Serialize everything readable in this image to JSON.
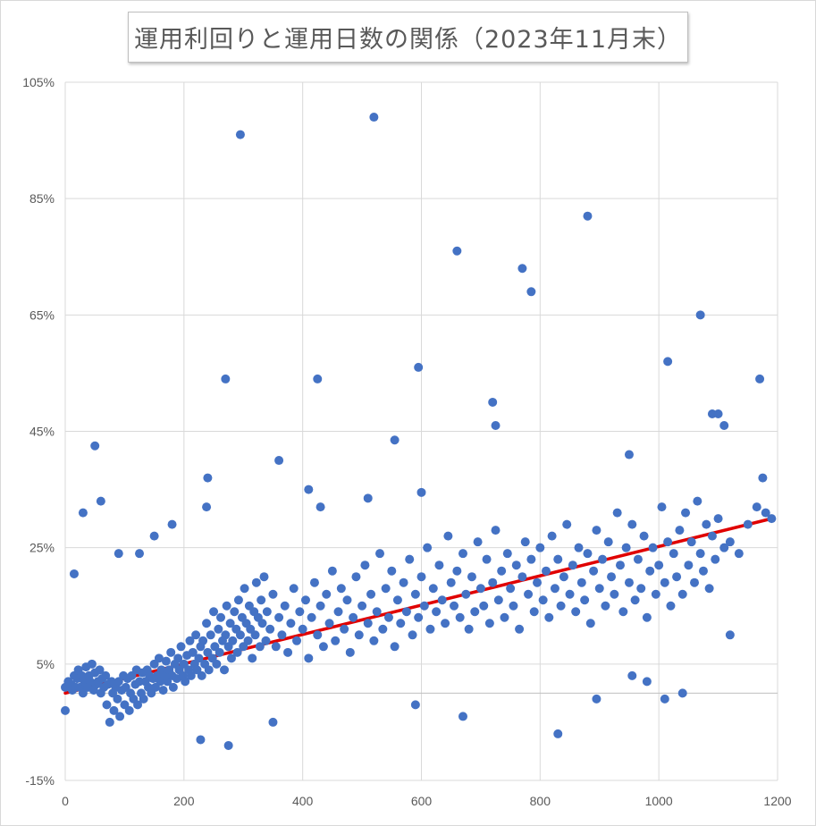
{
  "chart_data": {
    "type": "scatter",
    "title": "運用利回りと運用日数の関係（2023年11月末）",
    "xlabel": "",
    "ylabel": "",
    "xlim": [
      0,
      1200
    ],
    "ylim": [
      -15,
      105
    ],
    "x_ticks": [
      "0",
      "200",
      "400",
      "600",
      "800",
      "1000",
      "1200"
    ],
    "y_ticks": [
      "-15%",
      "5%",
      "25%",
      "45%",
      "65%",
      "85%",
      "105%"
    ],
    "grid": true,
    "legend": "none",
    "marker_color": "#4472C4",
    "trendline": {
      "type": "linear",
      "color": "#E00000",
      "points": [
        [
          0,
          0
        ],
        [
          1190,
          30
        ]
      ]
    },
    "points": [
      [
        0,
        1
      ],
      [
        5,
        2
      ],
      [
        10,
        1.5
      ],
      [
        12,
        0.5
      ],
      [
        15,
        3
      ],
      [
        18,
        1
      ],
      [
        20,
        2.5
      ],
      [
        22,
        4
      ],
      [
        25,
        1
      ],
      [
        28,
        3
      ],
      [
        30,
        0
      ],
      [
        32,
        2
      ],
      [
        35,
        4.5
      ],
      [
        38,
        1
      ],
      [
        40,
        3
      ],
      [
        42,
        2
      ],
      [
        45,
        5
      ],
      [
        48,
        0.5
      ],
      [
        50,
        3.5
      ],
      [
        52,
        1.5
      ],
      [
        55,
        2
      ],
      [
        58,
        4
      ],
      [
        60,
        0
      ],
      [
        62,
        2.5
      ],
      [
        65,
        1
      ],
      [
        68,
        3
      ],
      [
        70,
        -2
      ],
      [
        72,
        1.5
      ],
      [
        75,
        -5
      ],
      [
        78,
        2
      ],
      [
        80,
        0
      ],
      [
        82,
        -3
      ],
      [
        85,
        1
      ],
      [
        88,
        -1
      ],
      [
        90,
        2
      ],
      [
        92,
        -4
      ],
      [
        95,
        0.5
      ],
      [
        98,
        3
      ],
      [
        100,
        -2
      ],
      [
        102,
        1
      ],
      [
        105,
        2.5
      ],
      [
        108,
        -3
      ],
      [
        110,
        0
      ],
      [
        112,
        3
      ],
      [
        115,
        -1
      ],
      [
        118,
        1.5
      ],
      [
        120,
        4
      ],
      [
        122,
        -2
      ],
      [
        125,
        2
      ],
      [
        128,
        0
      ],
      [
        130,
        3.5
      ],
      [
        132,
        -1
      ],
      [
        135,
        2
      ],
      [
        138,
        4
      ],
      [
        140,
        1
      ],
      [
        142,
        3
      ],
      [
        145,
        0
      ],
      [
        148,
        2.5
      ],
      [
        150,
        5
      ],
      [
        152,
        1
      ],
      [
        155,
        3
      ],
      [
        158,
        6
      ],
      [
        160,
        2
      ],
      [
        162,
        4
      ],
      [
        165,
        0.5
      ],
      [
        168,
        3
      ],
      [
        170,
        5.5
      ],
      [
        172,
        2
      ],
      [
        175,
        4
      ],
      [
        178,
        7
      ],
      [
        180,
        3
      ],
      [
        182,
        1
      ],
      [
        185,
        5
      ],
      [
        188,
        2.5
      ],
      [
        190,
        6
      ],
      [
        192,
        4
      ],
      [
        195,
        8
      ],
      [
        198,
        3
      ],
      [
        200,
        5
      ],
      [
        202,
        2
      ],
      [
        205,
        6.5
      ],
      [
        208,
        4
      ],
      [
        210,
        9
      ],
      [
        212,
        3
      ],
      [
        215,
        7
      ],
      [
        218,
        5
      ],
      [
        220,
        10
      ],
      [
        222,
        4
      ],
      [
        225,
        6
      ],
      [
        228,
        8
      ],
      [
        230,
        3
      ],
      [
        232,
        9
      ],
      [
        235,
        5
      ],
      [
        238,
        12
      ],
      [
        240,
        7
      ],
      [
        242,
        4
      ],
      [
        245,
        10
      ],
      [
        248,
        6
      ],
      [
        250,
        14
      ],
      [
        252,
        8
      ],
      [
        255,
        5
      ],
      [
        258,
        11
      ],
      [
        260,
        7
      ],
      [
        262,
        13
      ],
      [
        265,
        9
      ],
      [
        268,
        4
      ],
      [
        270,
        10
      ],
      [
        272,
        15
      ],
      [
        275,
        8
      ],
      [
        278,
        12
      ],
      [
        280,
        6
      ],
      [
        282,
        9
      ],
      [
        285,
        14
      ],
      [
        288,
        11
      ],
      [
        290,
        7
      ],
      [
        292,
        16
      ],
      [
        295,
        10
      ],
      [
        298,
        13
      ],
      [
        300,
        8
      ],
      [
        302,
        18
      ],
      [
        305,
        12
      ],
      [
        308,
        9
      ],
      [
        310,
        15
      ],
      [
        312,
        11
      ],
      [
        315,
        6
      ],
      [
        318,
        14
      ],
      [
        320,
        10
      ],
      [
        322,
        19
      ],
      [
        325,
        13
      ],
      [
        328,
        8
      ],
      [
        330,
        16
      ],
      [
        332,
        12
      ],
      [
        335,
        20
      ],
      [
        338,
        9
      ],
      [
        340,
        14
      ],
      [
        345,
        11
      ],
      [
        350,
        17
      ],
      [
        355,
        8
      ],
      [
        360,
        13
      ],
      [
        365,
        10
      ],
      [
        370,
        15
      ],
      [
        375,
        7
      ],
      [
        380,
        12
      ],
      [
        385,
        18
      ],
      [
        390,
        9
      ],
      [
        395,
        14
      ],
      [
        400,
        11
      ],
      [
        405,
        16
      ],
      [
        410,
        6
      ],
      [
        415,
        13
      ],
      [
        420,
        19
      ],
      [
        425,
        10
      ],
      [
        430,
        15
      ],
      [
        435,
        8
      ],
      [
        440,
        17
      ],
      [
        445,
        12
      ],
      [
        450,
        21
      ],
      [
        455,
        9
      ],
      [
        460,
        14
      ],
      [
        465,
        18
      ],
      [
        470,
        11
      ],
      [
        475,
        16
      ],
      [
        480,
        7
      ],
      [
        485,
        13
      ],
      [
        490,
        20
      ],
      [
        495,
        10
      ],
      [
        500,
        15
      ],
      [
        505,
        22
      ],
      [
        510,
        12
      ],
      [
        515,
        17
      ],
      [
        520,
        9
      ],
      [
        525,
        14
      ],
      [
        530,
        24
      ],
      [
        535,
        11
      ],
      [
        540,
        18
      ],
      [
        545,
        13
      ],
      [
        550,
        21
      ],
      [
        555,
        8
      ],
      [
        560,
        16
      ],
      [
        565,
        12
      ],
      [
        570,
        19
      ],
      [
        575,
        14
      ],
      [
        580,
        23
      ],
      [
        585,
        10
      ],
      [
        590,
        17
      ],
      [
        595,
        13
      ],
      [
        600,
        20
      ],
      [
        605,
        15
      ],
      [
        610,
        25
      ],
      [
        615,
        11
      ],
      [
        620,
        18
      ],
      [
        625,
        14
      ],
      [
        630,
        22
      ],
      [
        635,
        16
      ],
      [
        640,
        12
      ],
      [
        645,
        27
      ],
      [
        650,
        19
      ],
      [
        655,
        15
      ],
      [
        660,
        21
      ],
      [
        665,
        13
      ],
      [
        670,
        24
      ],
      [
        675,
        17
      ],
      [
        680,
        11
      ],
      [
        685,
        20
      ],
      [
        690,
        14
      ],
      [
        695,
        26
      ],
      [
        700,
        18
      ],
      [
        705,
        15
      ],
      [
        710,
        23
      ],
      [
        715,
        12
      ],
      [
        720,
        19
      ],
      [
        725,
        28
      ],
      [
        730,
        16
      ],
      [
        735,
        21
      ],
      [
        740,
        13
      ],
      [
        745,
        24
      ],
      [
        750,
        18
      ],
      [
        755,
        15
      ],
      [
        760,
        22
      ],
      [
        765,
        11
      ],
      [
        770,
        20
      ],
      [
        775,
        26
      ],
      [
        780,
        17
      ],
      [
        785,
        23
      ],
      [
        790,
        14
      ],
      [
        795,
        19
      ],
      [
        800,
        25
      ],
      [
        805,
        16
      ],
      [
        810,
        21
      ],
      [
        815,
        13
      ],
      [
        820,
        27
      ],
      [
        825,
        18
      ],
      [
        830,
        23
      ],
      [
        835,
        15
      ],
      [
        840,
        20
      ],
      [
        845,
        29
      ],
      [
        850,
        17
      ],
      [
        855,
        22
      ],
      [
        860,
        14
      ],
      [
        865,
        25
      ],
      [
        870,
        19
      ],
      [
        875,
        16
      ],
      [
        880,
        24
      ],
      [
        885,
        12
      ],
      [
        890,
        21
      ],
      [
        895,
        28
      ],
      [
        900,
        18
      ],
      [
        905,
        23
      ],
      [
        910,
        15
      ],
      [
        915,
        26
      ],
      [
        920,
        20
      ],
      [
        925,
        17
      ],
      [
        930,
        31
      ],
      [
        935,
        22
      ],
      [
        940,
        14
      ],
      [
        945,
        25
      ],
      [
        950,
        19
      ],
      [
        955,
        29
      ],
      [
        960,
        16
      ],
      [
        965,
        23
      ],
      [
        970,
        18
      ],
      [
        975,
        27
      ],
      [
        980,
        13
      ],
      [
        985,
        21
      ],
      [
        990,
        25
      ],
      [
        995,
        17
      ],
      [
        1000,
        22
      ],
      [
        1005,
        32
      ],
      [
        1010,
        19
      ],
      [
        1015,
        26
      ],
      [
        1020,
        15
      ],
      [
        1025,
        24
      ],
      [
        1030,
        20
      ],
      [
        1035,
        28
      ],
      [
        1040,
        17
      ],
      [
        1045,
        31
      ],
      [
        1050,
        22
      ],
      [
        1055,
        26
      ],
      [
        1060,
        19
      ],
      [
        1065,
        33
      ],
      [
        1070,
        24
      ],
      [
        1075,
        21
      ],
      [
        1080,
        29
      ],
      [
        1085,
        18
      ],
      [
        1090,
        27
      ],
      [
        1095,
        23
      ],
      [
        1100,
        30
      ],
      [
        1110,
        25
      ],
      [
        1120,
        26
      ],
      [
        1135,
        24
      ],
      [
        1150,
        29
      ],
      [
        1165,
        32
      ],
      [
        1180,
        31
      ],
      [
        1190,
        30
      ],
      [
        0,
        -3
      ],
      [
        15,
        20.5
      ],
      [
        30,
        31
      ],
      [
        50,
        42.5
      ],
      [
        60,
        33
      ],
      [
        90,
        24
      ],
      [
        125,
        24
      ],
      [
        150,
        27
      ],
      [
        180,
        29
      ],
      [
        240,
        37
      ],
      [
        238,
        32
      ],
      [
        228,
        -8
      ],
      [
        275,
        -9
      ],
      [
        270,
        54
      ],
      [
        295,
        96
      ],
      [
        360,
        40
      ],
      [
        350,
        -5
      ],
      [
        410,
        35
      ],
      [
        425,
        54
      ],
      [
        430,
        32
      ],
      [
        510,
        33.5
      ],
      [
        520,
        99
      ],
      [
        555,
        43.5
      ],
      [
        590,
        -2
      ],
      [
        595,
        56
      ],
      [
        600,
        34.5
      ],
      [
        660,
        76
      ],
      [
        670,
        -4
      ],
      [
        720,
        50
      ],
      [
        725,
        46
      ],
      [
        770,
        73
      ],
      [
        785,
        69
      ],
      [
        830,
        -7
      ],
      [
        880,
        82
      ],
      [
        895,
        -1
      ],
      [
        950,
        41
      ],
      [
        955,
        3
      ],
      [
        980,
        2
      ],
      [
        1010,
        -1
      ],
      [
        1015,
        57
      ],
      [
        1040,
        0
      ],
      [
        1070,
        65
      ],
      [
        1090,
        48
      ],
      [
        1100,
        48
      ],
      [
        1110,
        46
      ],
      [
        1120,
        10
      ],
      [
        1170,
        54
      ],
      [
        1175,
        37
      ]
    ]
  }
}
